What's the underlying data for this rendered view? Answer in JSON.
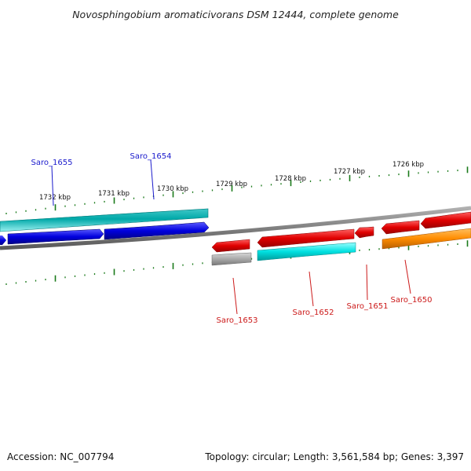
{
  "title": "Novosphingobium aromaticivorans DSM 12444, complete genome",
  "footer": {
    "accession": "Accession: NC_007794",
    "summary": "Topology: circular; Length: 3,561,584 bp; Genes: 3,397"
  },
  "colors": {
    "backbone": "#8c8c8c",
    "ticks": "#1a7a1a",
    "forward_label": "#1a1acc",
    "reverse_label": "#cc1a1a",
    "red": "#e00000",
    "blue": "#0000dd",
    "cyan": "#00e0e0",
    "teal": "#00b8b8",
    "orange": "#ff8c00",
    "gray": "#a8a8a8"
  },
  "kbp_labels": [
    "1732 kbp",
    "1731 kbp",
    "1730 kbp",
    "1729 kbp",
    "1728 kbp",
    "1727 kbp",
    "1726 kbp"
  ],
  "gene_labels": {
    "saro_1655": "Saro_1655",
    "saro_1654": "Saro_1654",
    "saro_1653": "Saro_1653",
    "saro_1652": "Saro_1652",
    "saro_1651": "Saro_1651",
    "saro_1650": "Saro_1650"
  }
}
